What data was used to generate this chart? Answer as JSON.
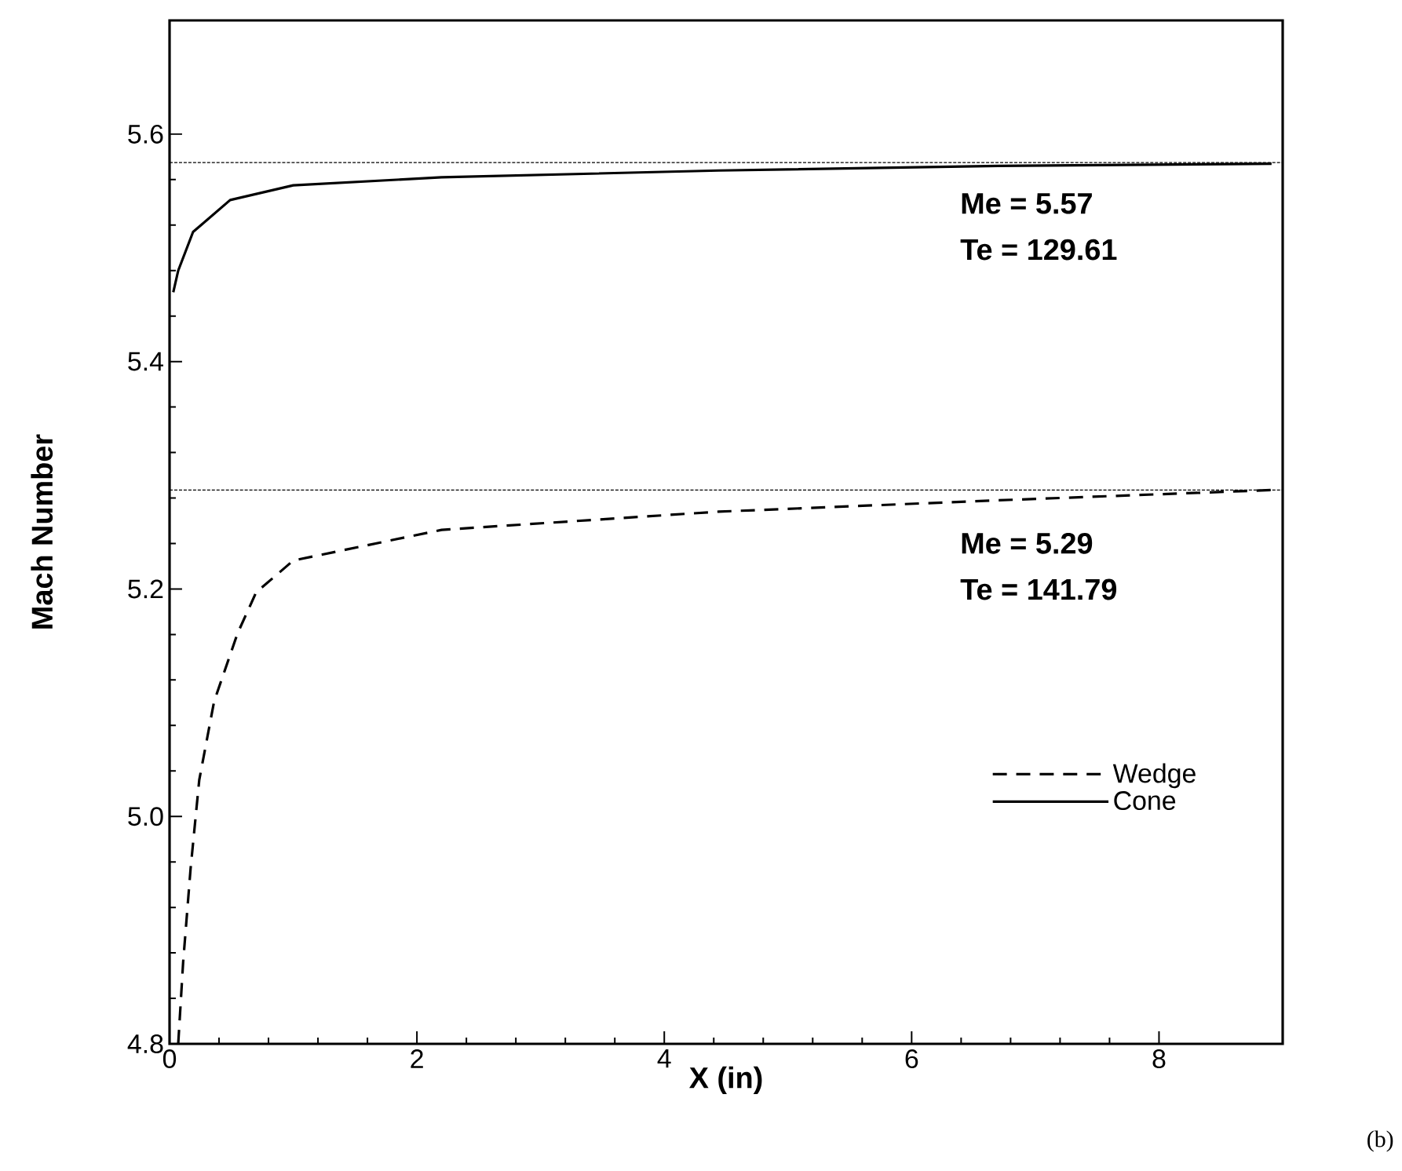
{
  "chart_data": {
    "type": "line",
    "xlabel": "X (in)",
    "ylabel": "Mach Number",
    "xlim": [
      0,
      9
    ],
    "ylim": [
      4.8,
      5.7
    ],
    "xticks": [
      0,
      2,
      4,
      6,
      8
    ],
    "yticks": [
      4.8,
      {
        "value": 5.0,
        "label": "5.0"
      },
      5.2,
      5.4,
      5.6
    ],
    "grid": false,
    "legend": "bottom right",
    "marker": "none",
    "series": [
      {
        "name": "Wedge",
        "color": "#000000",
        "line_style": "dashed",
        "x": [
          0.07,
          0.11,
          0.17,
          0.24,
          0.36,
          0.55,
          0.7,
          1.0,
          2.2,
          4.44,
          6.7,
          8.91
        ],
        "values": [
          4.8,
          4.872,
          4.954,
          5.032,
          5.101,
          5.161,
          5.197,
          5.225,
          5.252,
          5.268,
          5.278,
          5.287
        ]
      },
      {
        "name": "Cone",
        "color": "#000000",
        "line_style": "solid",
        "x": [
          0.03,
          0.07,
          0.19,
          0.49,
          1.0,
          2.2,
          4.44,
          6.7,
          8.91
        ],
        "values": [
          5.461,
          5.48,
          5.514,
          5.542,
          5.555,
          5.562,
          5.568,
          5.572,
          5.574
        ]
      }
    ],
    "ref_lines": [
      {
        "axis": "y",
        "value": 5.575,
        "color": "#000000",
        "line_style": "dashed"
      },
      {
        "axis": "y",
        "value": 5.287,
        "color": "#000000",
        "line_style": "dashed"
      }
    ],
    "annotations": [
      "Me = 5.57",
      "Te  = 129.61",
      "Me = 5.29",
      "Te  = 141.79",
      "(b)"
    ]
  }
}
